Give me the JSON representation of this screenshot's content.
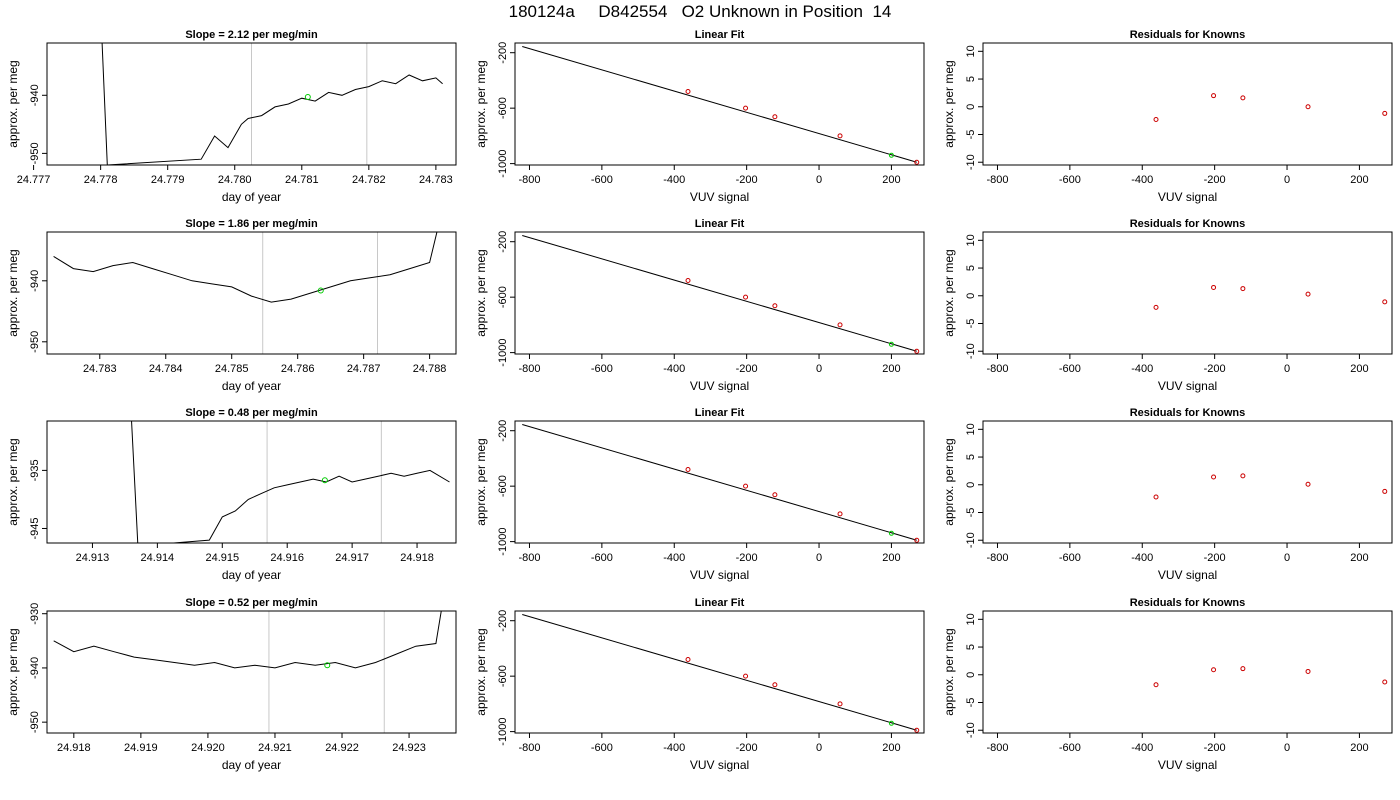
{
  "title": "180124a     D842554   O2 Unknown in Position  14",
  "chart_data": [
    {
      "type": "line",
      "title": "Slope =  2.12  per meg/min",
      "xlabel": "day of year",
      "ylabel": "approx. per meg",
      "xlim": [
        24.7772,
        24.7833
      ],
      "ylim": [
        -952,
        -931
      ],
      "xticks": [
        24.777,
        24.778,
        24.779,
        24.78,
        24.781,
        24.782,
        24.783
      ],
      "xtick_labels": [
        "24.777",
        "24.778",
        "24.779",
        "24.780",
        "24.781",
        "24.782",
        "24.783"
      ],
      "yticks": [
        -950,
        -940
      ],
      "ytick_labels": [
        "-950",
        "-940"
      ],
      "vlines": [
        24.78025,
        24.78197
      ],
      "highlight_point": [
        24.78109,
        -940.3
      ],
      "series": [
        {
          "x": [
            24.778,
            24.7781,
            24.7795,
            24.7797,
            24.7799,
            24.7801,
            24.7802,
            24.7804,
            24.7806,
            24.7808,
            24.781,
            24.7812,
            24.7814,
            24.7816,
            24.7818,
            24.782,
            24.7822,
            24.7824,
            24.7826,
            24.7828,
            24.783,
            24.7831
          ],
          "y": [
            -925,
            -952,
            -951,
            -947,
            -949,
            -945,
            -944,
            -943.5,
            -942,
            -941.5,
            -940.5,
            -941,
            -939.5,
            -940,
            -939,
            -938.5,
            -937.5,
            -938,
            -936.5,
            -937.5,
            -937,
            -938
          ]
        }
      ]
    },
    {
      "type": "line",
      "title": "Slope =  1.86  per meg/min",
      "xlabel": "day of year",
      "ylabel": "approx. per meg",
      "xlim": [
        24.7822,
        24.7884
      ],
      "ylim": [
        -952,
        -932
      ],
      "xticks": [
        24.783,
        24.784,
        24.785,
        24.786,
        24.787,
        24.788
      ],
      "xtick_labels": [
        "24.783",
        "24.784",
        "24.785",
        "24.786",
        "24.787",
        "24.788"
      ],
      "yticks": [
        -950,
        -940
      ],
      "ytick_labels": [
        "-950",
        "-940"
      ],
      "vlines": [
        24.78547,
        24.78721
      ],
      "highlight_point": [
        24.78635,
        -941.6
      ],
      "series": [
        {
          "x": [
            24.7823,
            24.7826,
            24.7829,
            24.7832,
            24.7835,
            24.7838,
            24.7841,
            24.7844,
            24.7847,
            24.785,
            24.7853,
            24.7856,
            24.7859,
            24.7862,
            24.7865,
            24.7868,
            24.7871,
            24.7874,
            24.7877,
            24.788,
            24.7882
          ],
          "y": [
            -936,
            -938,
            -938.5,
            -937.5,
            -937,
            -938,
            -939,
            -940,
            -940.5,
            -941,
            -942.5,
            -943.5,
            -943,
            -942,
            -941,
            -940,
            -939.5,
            -939,
            -938,
            -937,
            -928
          ]
        }
      ]
    },
    {
      "type": "line",
      "title": "Slope =  0.48  per meg/min",
      "xlabel": "day of year",
      "ylabel": "approx. per meg",
      "xlim": [
        24.9123,
        24.9186
      ],
      "ylim": [
        -947.5,
        -926.5
      ],
      "xticks": [
        24.913,
        24.914,
        24.915,
        24.916,
        24.917,
        24.918
      ],
      "xtick_labels": [
        "24.913",
        "24.914",
        "24.915",
        "24.916",
        "24.917",
        "24.918"
      ],
      "yticks": [
        -945,
        -935
      ],
      "ytick_labels": [
        "-945",
        "-935"
      ],
      "vlines": [
        24.91569,
        24.91745
      ],
      "highlight_point": [
        24.91658,
        -936.7
      ],
      "series": [
        {
          "x": [
            24.9136,
            24.9137,
            24.9148,
            24.915,
            24.9152,
            24.9154,
            24.9156,
            24.9158,
            24.916,
            24.9162,
            24.9164,
            24.9166,
            24.9168,
            24.917,
            24.9172,
            24.9174,
            24.9176,
            24.9178,
            24.918,
            24.9182,
            24.9185
          ],
          "y": [
            -926,
            -948,
            -947,
            -943,
            -942,
            -940,
            -939,
            -938,
            -937.5,
            -937,
            -936.5,
            -937,
            -936,
            -937,
            -936.5,
            -936,
            -935.5,
            -936,
            -935.5,
            -935,
            -937
          ]
        }
      ]
    },
    {
      "type": "line",
      "title": "Slope =  0.52  per meg/min",
      "xlabel": "day of year",
      "ylabel": "approx. per meg",
      "xlim": [
        24.9176,
        24.9237
      ],
      "ylim": [
        -952,
        -929.5
      ],
      "xticks": [
        24.918,
        24.919,
        24.92,
        24.921,
        24.922,
        24.923
      ],
      "xtick_labels": [
        "24.918",
        "24.919",
        "24.920",
        "24.921",
        "24.922",
        "24.923"
      ],
      "yticks": [
        -950,
        -940,
        -930
      ],
      "ytick_labels": [
        "-950",
        "-940",
        "-930"
      ],
      "vlines": [
        24.92091,
        24.92263
      ],
      "highlight_point": [
        24.92178,
        -939.5
      ],
      "series": [
        {
          "x": [
            24.9177,
            24.918,
            24.9183,
            24.9186,
            24.9189,
            24.9192,
            24.9195,
            24.9198,
            24.9201,
            24.9204,
            24.9207,
            24.921,
            24.9213,
            24.9216,
            24.9219,
            24.9222,
            24.9225,
            24.9228,
            24.9231,
            24.9234,
            24.9235
          ],
          "y": [
            -935,
            -937,
            -936,
            -937,
            -938,
            -938.5,
            -939,
            -939.5,
            -939,
            -940,
            -939.5,
            -940,
            -939,
            -939.5,
            -939,
            -940,
            -939,
            -937.5,
            -936,
            -935.5,
            -928
          ]
        }
      ]
    },
    {
      "type": "line",
      "title": "Linear Fit",
      "xlabel": "VUV signal",
      "ylabel": "approx. per meg",
      "xlim": [
        -840,
        290
      ],
      "ylim": [
        -1010,
        -130
      ],
      "xticks": [
        -800,
        -600,
        -400,
        -200,
        0,
        200
      ],
      "xtick_labels": [
        "-800",
        "-600",
        "-400",
        "-200",
        "0",
        "200"
      ],
      "yticks": [
        -1000,
        -600,
        -200
      ],
      "ytick_labels": [
        "-1000",
        "-600",
        "-200"
      ],
      "fit_line": [
        [
          -820,
          -155
        ],
        [
          270,
          -990
        ]
      ],
      "knowns": [
        [
          -362,
          -480
        ],
        [
          -203,
          -600
        ],
        [
          -122,
          -662
        ],
        [
          58,
          -800
        ],
        [
          270,
          -990
        ]
      ],
      "unknown": [
        200,
        -940
      ]
    },
    {
      "type": "line",
      "title": "Linear Fit",
      "xlabel": "VUV signal",
      "ylabel": "approx. per meg",
      "xlim": [
        -840,
        290
      ],
      "ylim": [
        -1010,
        -130
      ],
      "xticks": [
        -800,
        -600,
        -400,
        -200,
        0,
        200
      ],
      "xtick_labels": [
        "-800",
        "-600",
        "-400",
        "-200",
        "0",
        "200"
      ],
      "yticks": [
        -1000,
        -600,
        -200
      ],
      "ytick_labels": [
        "-1000",
        "-600",
        "-200"
      ],
      "fit_line": [
        [
          -820,
          -155
        ],
        [
          270,
          -990
        ]
      ],
      "knowns": [
        [
          -362,
          -480
        ],
        [
          -203,
          -600
        ],
        [
          -122,
          -662
        ],
        [
          58,
          -800
        ],
        [
          270,
          -990
        ]
      ],
      "unknown": [
        200,
        -940
      ]
    },
    {
      "type": "line",
      "title": "Linear Fit",
      "xlabel": "VUV signal",
      "ylabel": "approx. per meg",
      "xlim": [
        -840,
        290
      ],
      "ylim": [
        -1010,
        -130
      ],
      "xticks": [
        -800,
        -600,
        -400,
        -200,
        0,
        200
      ],
      "xtick_labels": [
        "-800",
        "-600",
        "-400",
        "-200",
        "0",
        "200"
      ],
      "yticks": [
        -1000,
        -600,
        -200
      ],
      "ytick_labels": [
        "-1000",
        "-600",
        "-200"
      ],
      "fit_line": [
        [
          -820,
          -155
        ],
        [
          270,
          -990
        ]
      ],
      "knowns": [
        [
          -362,
          -480
        ],
        [
          -203,
          -600
        ],
        [
          -122,
          -662
        ],
        [
          58,
          -800
        ],
        [
          270,
          -990
        ]
      ],
      "unknown": [
        200,
        -940
      ]
    },
    {
      "type": "line",
      "title": "Linear Fit",
      "xlabel": "VUV signal",
      "ylabel": "approx. per meg",
      "xlim": [
        -840,
        290
      ],
      "ylim": [
        -1010,
        -130
      ],
      "xticks": [
        -800,
        -600,
        -400,
        -200,
        0,
        200
      ],
      "xtick_labels": [
        "-800",
        "-600",
        "-400",
        "-200",
        "0",
        "200"
      ],
      "yticks": [
        -1000,
        -600,
        -200
      ],
      "ytick_labels": [
        "-1000",
        "-600",
        "-200"
      ],
      "fit_line": [
        [
          -820,
          -155
        ],
        [
          270,
          -990
        ]
      ],
      "knowns": [
        [
          -362,
          -480
        ],
        [
          -203,
          -600
        ],
        [
          -122,
          -662
        ],
        [
          58,
          -800
        ],
        [
          270,
          -990
        ]
      ],
      "unknown": [
        200,
        -940
      ]
    },
    {
      "type": "scatter",
      "title": "Residuals for Knowns",
      "xlabel": "VUV signal",
      "ylabel": "approx. per meg",
      "xlim": [
        -840,
        290
      ],
      "ylim": [
        -10.5,
        11.5
      ],
      "xticks": [
        -800,
        -600,
        -400,
        -200,
        0,
        200
      ],
      "xtick_labels": [
        "-800",
        "-600",
        "-400",
        "-200",
        "0",
        "200"
      ],
      "yticks": [
        -10,
        -5,
        0,
        5,
        10
      ],
      "ytick_labels": [
        "-10",
        "-5",
        "0",
        "5",
        "10"
      ],
      "points": [
        [
          -362,
          -2.3
        ],
        [
          -203,
          2.0
        ],
        [
          -122,
          1.6
        ],
        [
          58,
          0.0
        ],
        [
          270,
          -1.2
        ]
      ]
    },
    {
      "type": "scatter",
      "title": "Residuals for Knowns",
      "xlabel": "VUV signal",
      "ylabel": "approx. per meg",
      "xlim": [
        -840,
        290
      ],
      "ylim": [
        -10.5,
        11.5
      ],
      "xticks": [
        -800,
        -600,
        -400,
        -200,
        0,
        200
      ],
      "xtick_labels": [
        "-800",
        "-600",
        "-400",
        "-200",
        "0",
        "200"
      ],
      "yticks": [
        -10,
        -5,
        0,
        5,
        10
      ],
      "ytick_labels": [
        "-10",
        "-5",
        "0",
        "5",
        "10"
      ],
      "points": [
        [
          -362,
          -2.1
        ],
        [
          -203,
          1.5
        ],
        [
          -122,
          1.3
        ],
        [
          58,
          0.3
        ],
        [
          270,
          -1.1
        ]
      ]
    },
    {
      "type": "scatter",
      "title": "Residuals for Knowns",
      "xlabel": "VUV signal",
      "ylabel": "approx. per meg",
      "xlim": [
        -840,
        290
      ],
      "ylim": [
        -10.5,
        11.5
      ],
      "xticks": [
        -800,
        -600,
        -400,
        -200,
        0,
        200
      ],
      "xtick_labels": [
        "-800",
        "-600",
        "-400",
        "-200",
        "0",
        "200"
      ],
      "yticks": [
        -10,
        -5,
        0,
        5,
        10
      ],
      "ytick_labels": [
        "-10",
        "-5",
        "0",
        "5",
        "10"
      ],
      "points": [
        [
          -362,
          -2.2
        ],
        [
          -203,
          1.4
        ],
        [
          -122,
          1.6
        ],
        [
          58,
          0.1
        ],
        [
          270,
          -1.2
        ]
      ]
    },
    {
      "type": "scatter",
      "title": "Residuals for Knowns",
      "xlabel": "VUV signal",
      "ylabel": "approx. per meg",
      "xlim": [
        -840,
        290
      ],
      "ylim": [
        -10.5,
        11.5
      ],
      "xticks": [
        -800,
        -600,
        -400,
        -200,
        0,
        200
      ],
      "xtick_labels": [
        "-800",
        "-600",
        "-400",
        "-200",
        "0",
        "200"
      ],
      "yticks": [
        -10,
        -5,
        0,
        5,
        10
      ],
      "ytick_labels": [
        "-10",
        "-5",
        "0",
        "5",
        "10"
      ],
      "points": [
        [
          -362,
          -1.8
        ],
        [
          -203,
          0.9
        ],
        [
          -122,
          1.1
        ],
        [
          58,
          0.6
        ],
        [
          270,
          -1.3
        ]
      ]
    }
  ]
}
